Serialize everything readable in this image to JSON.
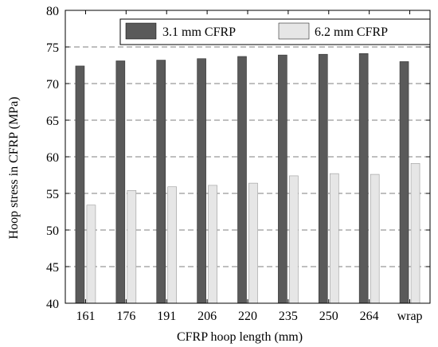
{
  "chart_data": {
    "type": "bar",
    "categories": [
      "161",
      "176",
      "191",
      "206",
      "220",
      "235",
      "250",
      "264",
      "wrap"
    ],
    "series": [
      {
        "name": "3.1 mm CFRP",
        "color": "#5a5a5a",
        "values": [
          72.4,
          73.1,
          73.2,
          73.4,
          73.7,
          73.9,
          74.0,
          74.1,
          73.0
        ]
      },
      {
        "name": "6.2 mm CFRP",
        "color": "#e6e6e6",
        "values": [
          53.4,
          55.4,
          55.9,
          56.1,
          56.4,
          57.4,
          57.7,
          57.6,
          59.1
        ]
      }
    ],
    "xlabel": "CFRP hoop length (mm)",
    "ylabel": "Hoop stress in CFRP (MPa)",
    "ylim": [
      40,
      80
    ],
    "yticks": [
      40,
      45,
      50,
      55,
      60,
      65,
      70,
      75,
      80
    ],
    "grid": true,
    "legend_position": "top-right"
  }
}
